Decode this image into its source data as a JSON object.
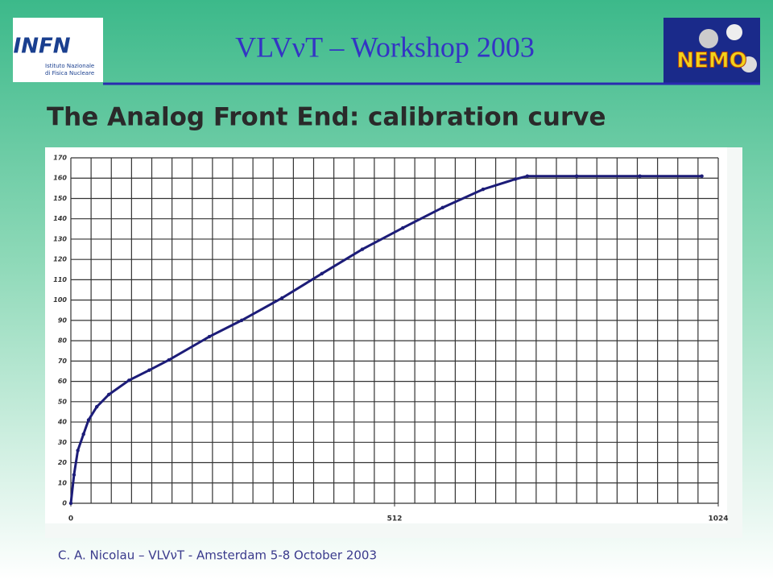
{
  "header": {
    "title": "VLVνT – Workshop 2003",
    "left_logo": {
      "name": "INFN",
      "subtitle_line1": "Istituto Nazionale",
      "subtitle_line2": "di Fisica Nucleare"
    },
    "right_logo": {
      "name": "NEMO"
    }
  },
  "slide_title": "The Analog Front End: calibration curve",
  "footer": "C. A. Nicolau – VLVνT - Amsterdam 5-8 October 2003",
  "chart_data": {
    "type": "line",
    "x": [
      0,
      5,
      11,
      20,
      28,
      41,
      60,
      92,
      124,
      155,
      219,
      270,
      334,
      397,
      461,
      525,
      588,
      652,
      703,
      722,
      800,
      900,
      998
    ],
    "series": [
      {
        "color": "#1c1c78",
        "values": [
          0,
          14,
          26,
          34,
          41,
          47.5,
          53.5,
          60.5,
          65.5,
          70.5,
          82,
          90,
          101,
          113,
          125,
          135.5,
          145.5,
          154.5,
          159.5,
          161,
          161,
          161,
          161
        ]
      }
    ],
    "xlim": [
      0,
      1024
    ],
    "xticks": [
      0,
      512,
      1024
    ],
    "xgrid": [
      0,
      32,
      64,
      96,
      128,
      160,
      192,
      224,
      256,
      288,
      320,
      352,
      384,
      416,
      448,
      480,
      512,
      544,
      576,
      608,
      640,
      672,
      704,
      736,
      768,
      800,
      832,
      864,
      896,
      928,
      960,
      992,
      1024
    ],
    "ylim": [
      0,
      170
    ],
    "yticks": [
      0,
      10,
      20,
      30,
      40,
      50,
      60,
      70,
      80,
      90,
      100,
      110,
      120,
      130,
      140,
      150,
      160,
      170
    ],
    "grid": true
  }
}
